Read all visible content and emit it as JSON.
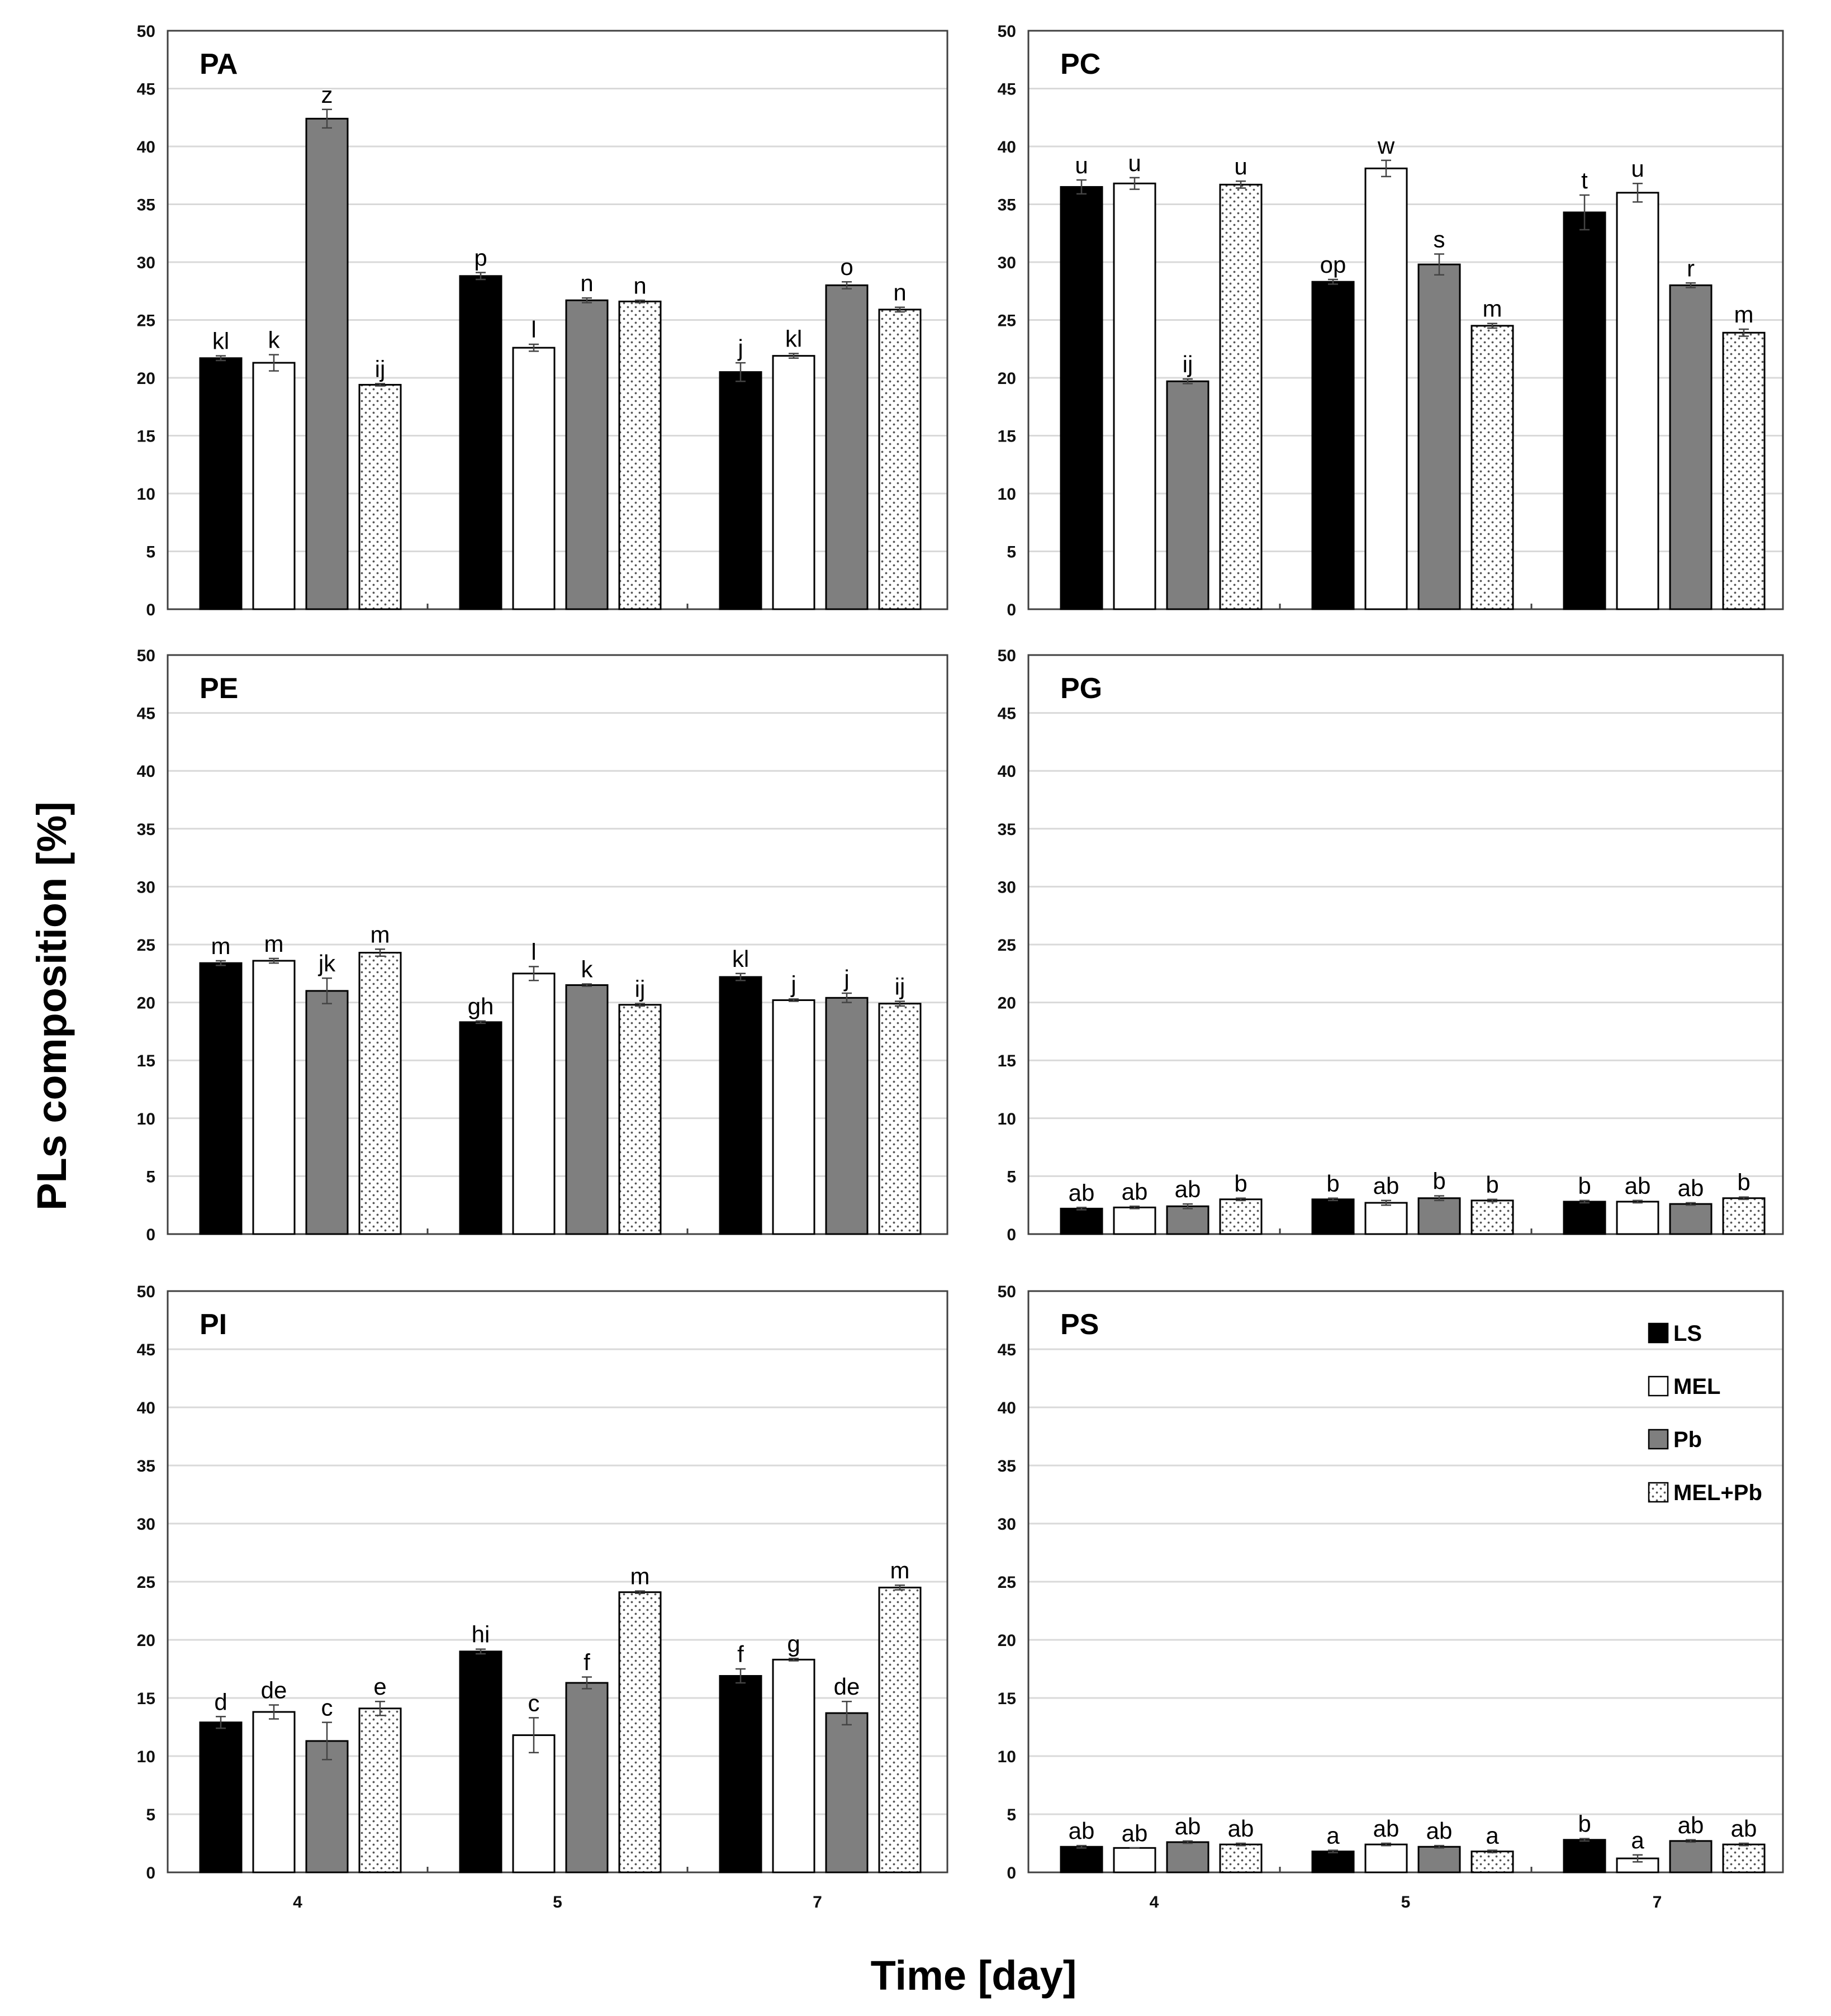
{
  "figure": {
    "ylabel": "PLs composition [%]",
    "xlabel": "Time [day]"
  },
  "chart_data": [
    {
      "type": "bar",
      "title": "PA",
      "categories": [
        "4",
        "5",
        "7"
      ],
      "ylim": [
        0,
        50
      ],
      "yticks": [
        0,
        5,
        10,
        15,
        20,
        25,
        30,
        35,
        40,
        45,
        50
      ],
      "series": [
        {
          "name": "LS",
          "values": [
            21.7,
            28.8,
            20.5
          ],
          "errors": [
            0.2,
            0.3,
            0.8
          ],
          "letters": [
            "kl",
            "p",
            "j"
          ]
        },
        {
          "name": "MEL",
          "values": [
            21.3,
            22.6,
            21.9
          ],
          "errors": [
            0.7,
            0.3,
            0.2
          ],
          "letters": [
            "k",
            "l",
            "kl"
          ]
        },
        {
          "name": "Pb",
          "values": [
            42.4,
            26.7,
            28.0
          ],
          "errors": [
            0.8,
            0.2,
            0.3
          ],
          "letters": [
            "z",
            "n",
            "o"
          ]
        },
        {
          "name": "MEL+Pb",
          "values": [
            19.4,
            26.6,
            25.9
          ],
          "errors": [
            0.1,
            0.1,
            0.2
          ],
          "letters": [
            "ij",
            "n",
            "n"
          ]
        }
      ]
    },
    {
      "type": "bar",
      "title": "PC",
      "categories": [
        "4",
        "5",
        "7"
      ],
      "ylim": [
        0,
        50
      ],
      "yticks": [
        0,
        5,
        10,
        15,
        20,
        25,
        30,
        35,
        40,
        45,
        50
      ],
      "series": [
        {
          "name": "LS",
          "values": [
            36.5,
            28.3,
            34.3
          ],
          "errors": [
            0.6,
            0.2,
            1.5
          ],
          "letters": [
            "u",
            "op",
            "t"
          ]
        },
        {
          "name": "MEL",
          "values": [
            36.8,
            38.1,
            36.0
          ],
          "errors": [
            0.5,
            0.7,
            0.8
          ],
          "letters": [
            "u",
            "w",
            "u"
          ]
        },
        {
          "name": "Pb",
          "values": [
            19.7,
            29.8,
            28.0
          ],
          "errors": [
            0.2,
            0.9,
            0.2
          ],
          "letters": [
            "ij",
            "s",
            "r"
          ]
        },
        {
          "name": "MEL+Pb",
          "values": [
            36.7,
            24.5,
            23.9
          ],
          "errors": [
            0.3,
            0.2,
            0.3
          ],
          "letters": [
            "u",
            "m",
            "m"
          ]
        }
      ]
    },
    {
      "type": "bar",
      "title": "PE",
      "categories": [
        "4",
        "5",
        "7"
      ],
      "ylim": [
        0,
        50
      ],
      "yticks": [
        0,
        5,
        10,
        15,
        20,
        25,
        30,
        35,
        40,
        45,
        50
      ],
      "series": [
        {
          "name": "LS",
          "values": [
            23.4,
            18.3,
            22.2
          ],
          "errors": [
            0.2,
            0.1,
            0.3
          ],
          "letters": [
            "m",
            "gh",
            "kl"
          ]
        },
        {
          "name": "MEL",
          "values": [
            23.6,
            22.5,
            20.2
          ],
          "errors": [
            0.2,
            0.6,
            0.1
          ],
          "letters": [
            "m",
            "l",
            "j"
          ]
        },
        {
          "name": "Pb",
          "values": [
            21.0,
            21.5,
            20.4
          ],
          "errors": [
            1.1,
            0.1,
            0.4
          ],
          "letters": [
            "jk",
            "k",
            "j"
          ]
        },
        {
          "name": "MEL+Pb",
          "values": [
            24.3,
            19.8,
            19.9
          ],
          "errors": [
            0.3,
            0.1,
            0.2
          ],
          "letters": [
            "m",
            "ij",
            "ij"
          ]
        }
      ]
    },
    {
      "type": "bar",
      "title": "PG",
      "categories": [
        "4",
        "5",
        "7"
      ],
      "ylim": [
        0,
        50
      ],
      "yticks": [
        0,
        5,
        10,
        15,
        20,
        25,
        30,
        35,
        40,
        45,
        50
      ],
      "series": [
        {
          "name": "LS",
          "values": [
            2.2,
            3.0,
            2.8
          ],
          "errors": [
            0.1,
            0.1,
            0.1
          ],
          "letters": [
            "ab",
            "b",
            "b"
          ]
        },
        {
          "name": "MEL",
          "values": [
            2.3,
            2.7,
            2.8
          ],
          "errors": [
            0.1,
            0.2,
            0.1
          ],
          "letters": [
            "ab",
            "ab",
            "ab"
          ]
        },
        {
          "name": "Pb",
          "values": [
            2.4,
            3.1,
            2.6
          ],
          "errors": [
            0.2,
            0.2,
            0.1
          ],
          "letters": [
            "ab",
            "b",
            "ab"
          ]
        },
        {
          "name": "MEL+Pb",
          "values": [
            3.0,
            2.9,
            3.1
          ],
          "errors": [
            0.1,
            0.1,
            0.1
          ],
          "letters": [
            "b",
            "b",
            "b"
          ]
        }
      ]
    },
    {
      "type": "bar",
      "title": "PI",
      "categories": [
        "4",
        "5",
        "7"
      ],
      "ylim": [
        0,
        50
      ],
      "yticks": [
        0,
        5,
        10,
        15,
        20,
        25,
        30,
        35,
        40,
        45,
        50
      ],
      "series": [
        {
          "name": "LS",
          "values": [
            12.9,
            19.0,
            16.9
          ],
          "errors": [
            0.5,
            0.2,
            0.6
          ],
          "letters": [
            "d",
            "hi",
            "f"
          ]
        },
        {
          "name": "MEL",
          "values": [
            13.8,
            11.8,
            18.3
          ],
          "errors": [
            0.6,
            1.5,
            0.1
          ],
          "letters": [
            "de",
            "c",
            "g"
          ]
        },
        {
          "name": "Pb",
          "values": [
            11.3,
            16.3,
            13.7
          ],
          "errors": [
            1.6,
            0.5,
            1.0
          ],
          "letters": [
            "c",
            "f",
            "de"
          ]
        },
        {
          "name": "MEL+Pb",
          "values": [
            14.1,
            24.1,
            24.5
          ],
          "errors": [
            0.6,
            0.1,
            0.2
          ],
          "letters": [
            "e",
            "m",
            "m"
          ]
        }
      ]
    },
    {
      "type": "bar",
      "title": "PS",
      "categories": [
        "4",
        "5",
        "7"
      ],
      "ylim": [
        0,
        50
      ],
      "yticks": [
        0,
        5,
        10,
        15,
        20,
        25,
        30,
        35,
        40,
        45,
        50
      ],
      "series": [
        {
          "name": "LS",
          "values": [
            2.2,
            1.8,
            2.8
          ],
          "errors": [
            0.1,
            0.1,
            0.1
          ],
          "letters": [
            "ab",
            "a",
            "b"
          ]
        },
        {
          "name": "MEL",
          "values": [
            2.1,
            2.4,
            1.2
          ],
          "errors": [
            0.0,
            0.1,
            0.3
          ],
          "letters": [
            "ab",
            "ab",
            "a"
          ]
        },
        {
          "name": "Pb",
          "values": [
            2.6,
            2.2,
            2.7
          ],
          "errors": [
            0.1,
            0.1,
            0.1
          ],
          "letters": [
            "ab",
            "ab",
            "ab"
          ]
        },
        {
          "name": "MEL+Pb",
          "values": [
            2.4,
            1.8,
            2.4
          ],
          "errors": [
            0.1,
            0.1,
            0.1
          ],
          "letters": [
            "ab",
            "a",
            "ab"
          ]
        }
      ]
    }
  ],
  "legend": {
    "panel": "PS",
    "items": [
      {
        "label": "LS"
      },
      {
        "label": "MEL"
      },
      {
        "label": "Pb"
      },
      {
        "label": "MEL+Pb"
      }
    ]
  },
  "colors": {
    "LS": "#000000",
    "MEL": "#ffffff",
    "Pb": "#7f7f7f",
    "MEL+Pb": "pattern",
    "grid": "#d9d9d9",
    "frame": "#404040"
  }
}
